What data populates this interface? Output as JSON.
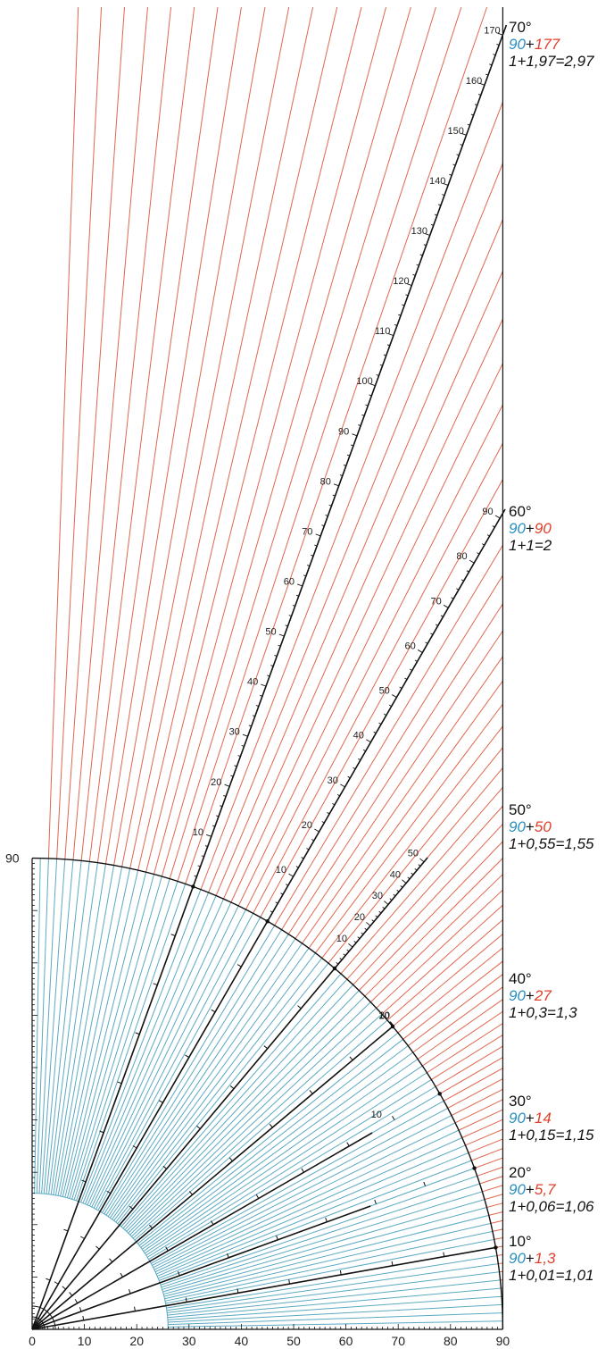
{
  "colors": {
    "blue_lines": "#5aa9c2",
    "red_lines": "#e0674e",
    "blue_text": "#2a8fc0",
    "red_text": "#e0402a",
    "black": "#111111"
  },
  "x_axis_labels": [
    "0",
    "10",
    "20",
    "30",
    "40",
    "50",
    "60",
    "70",
    "80",
    "90"
  ],
  "y_axis_label": "90",
  "rays": [
    {
      "angle": "10°",
      "base": "90",
      "plus": "+",
      "excess": "1,3",
      "equation": "1+0,01=1,01",
      "ticks": []
    },
    {
      "angle": "20°",
      "base": "90",
      "plus": "+",
      "excess": "5,7",
      "equation": "1+0,06=1,06",
      "ticks": []
    },
    {
      "angle": "30°",
      "base": "90",
      "plus": "+",
      "excess": "14",
      "equation": "1+0,15=1,15",
      "ticks": [
        "10"
      ]
    },
    {
      "angle": "40°",
      "base": "90",
      "plus": "+",
      "excess": "27",
      "equation": "1+0,3=1,3",
      "ticks": [
        "10",
        "20"
      ]
    },
    {
      "angle": "50°",
      "base": "90",
      "plus": "+",
      "excess": "50",
      "equation": "1+0,55=1,55",
      "ticks": [
        "10",
        "20",
        "30",
        "40",
        "50"
      ]
    },
    {
      "angle": "60°",
      "base": "90",
      "plus": "+",
      "excess": "90",
      "equation": "1+1=2",
      "ticks": [
        "10",
        "20",
        "30",
        "40",
        "50",
        "60",
        "70",
        "80",
        "90"
      ]
    },
    {
      "angle": "70°",
      "base": "90",
      "plus": "+",
      "excess": "177",
      "equation": "1+1,97=2,97",
      "ticks": [
        "10",
        "20",
        "30",
        "40",
        "50",
        "60",
        "70",
        "80",
        "90",
        "100",
        "110",
        "120",
        "130",
        "140",
        "150",
        "160",
        "170"
      ]
    }
  ]
}
